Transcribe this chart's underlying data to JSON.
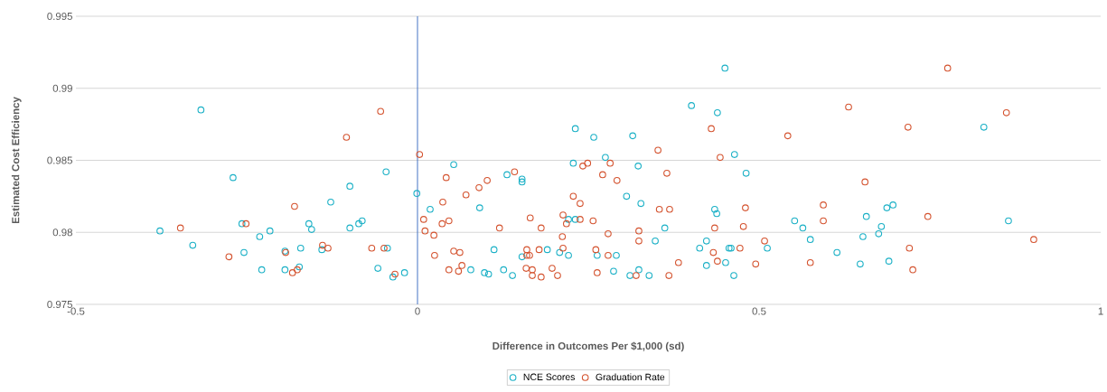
{
  "chart_data": {
    "type": "scatter",
    "xlabel": "Difference in Outcomes Per $1,000 (sd)",
    "ylabel": "Estimated Cost Efficiency",
    "xlim": [
      -0.5,
      1
    ],
    "ylim": [
      0.975,
      0.995
    ],
    "xticks": [
      -0.5,
      0,
      0.5,
      1
    ],
    "yticks": [
      0.975,
      0.98,
      0.985,
      0.99,
      0.995
    ],
    "grid": "y",
    "legend": "bottom",
    "marker": "circle",
    "ref_lines": [
      {
        "axis": "x",
        "value": 0,
        "color": "#4472c4"
      }
    ],
    "series": [
      {
        "name": "NCE Scores",
        "color": "#1ab0c6",
        "x": [
          -0.377,
          -0.329,
          -0.317,
          -0.27,
          -0.257,
          -0.254,
          -0.231,
          -0.228,
          -0.216,
          -0.194,
          -0.194,
          -0.173,
          -0.171,
          -0.159,
          -0.155,
          -0.14,
          -0.127,
          -0.099,
          -0.099,
          -0.086,
          -0.081,
          -0.058,
          -0.046,
          -0.044,
          -0.036,
          -0.019,
          -0.001,
          0.0185,
          0.053,
          0.091,
          0.112,
          0.078,
          0.098,
          0.104,
          0.126,
          0.139,
          0.131,
          0.153,
          0.153,
          0.153,
          0.19,
          0.208,
          0.221,
          0.221,
          0.231,
          0.228,
          0.263,
          0.291,
          0.287,
          0.306,
          0.323,
          0.327,
          0.324,
          0.311,
          0.339,
          0.348,
          0.362,
          0.481,
          0.435,
          0.438,
          0.413,
          0.423,
          0.423,
          0.451,
          0.456,
          0.459,
          0.463,
          0.512,
          0.382,
          0.231,
          0.258,
          0.315,
          0.275,
          0.401,
          0.439,
          0.45,
          0.464,
          0.829,
          0.552,
          0.564,
          0.575,
          0.614,
          0.648,
          0.652,
          0.657,
          0.675,
          0.679,
          0.687,
          0.696,
          0.69,
          0.865
        ],
        "values": [
          0.9801,
          0.9791,
          0.9885,
          0.9838,
          0.9806,
          0.9786,
          0.9797,
          0.9774,
          0.9801,
          0.9787,
          0.9774,
          0.9776,
          0.9789,
          0.9806,
          0.9802,
          0.9788,
          0.9821,
          0.9832,
          0.9803,
          0.9806,
          0.9808,
          0.9775,
          0.9842,
          0.9789,
          0.9769,
          0.9772,
          0.9827,
          0.9816,
          0.9847,
          0.9817,
          0.9788,
          0.9774,
          0.9772,
          0.9771,
          0.9774,
          0.977,
          0.984,
          0.9837,
          0.9835,
          0.9783,
          0.9788,
          0.9786,
          0.9784,
          0.9809,
          0.9809,
          0.9848,
          0.9784,
          0.9784,
          0.9773,
          0.9825,
          0.9846,
          0.982,
          0.9774,
          0.977,
          0.977,
          0.9794,
          0.9803,
          0.9841,
          0.9816,
          0.9813,
          0.9789,
          0.9794,
          0.9777,
          0.9779,
          0.9789,
          0.9789,
          0.977,
          0.9789,
          null,
          0.9872,
          0.9866,
          0.9867,
          0.9852,
          0.9888,
          0.9883,
          0.9914,
          0.9854,
          0.9873,
          0.9808,
          0.9803,
          0.9795,
          0.9786,
          0.9778,
          0.9797,
          0.9811,
          0.9799,
          0.9804,
          0.9817,
          0.9819,
          0.978,
          0.9808
        ]
      },
      {
        "name": "Graduation Rate",
        "color": "#d4532f",
        "x": [
          -0.054,
          -0.104,
          0.003,
          -0.347,
          -0.276,
          -0.251,
          -0.18,
          -0.193,
          -0.183,
          -0.176,
          -0.139,
          -0.131,
          -0.067,
          -0.049,
          -0.033,
          0.009,
          0.011,
          0.024,
          0.025,
          0.037,
          0.036,
          0.042,
          0.046,
          0.046,
          0.053,
          0.06,
          0.062,
          0.065,
          0.071,
          0.09,
          0.102,
          0.12,
          0.142,
          0.165,
          0.16,
          0.16,
          0.164,
          0.159,
          0.168,
          0.168,
          0.178,
          0.181,
          0.181,
          0.197,
          0.205,
          0.212,
          0.213,
          0.213,
          0.218,
          0.228,
          0.238,
          0.238,
          0.242,
          0.249,
          0.257,
          0.261,
          0.263,
          0.271,
          0.279,
          0.279,
          0.282,
          0.292,
          0.32,
          0.324,
          0.324,
          0.365,
          0.354,
          0.369,
          0.368,
          0.382,
          0.433,
          0.435,
          0.439,
          0.472,
          0.477,
          0.48,
          0.495,
          0.508,
          0.352,
          0.43,
          0.443,
          0.542,
          0.631,
          0.718,
          0.776,
          0.862,
          0.594,
          0.594,
          0.575,
          0.655,
          0.747,
          0.72,
          0.725,
          0.902
        ],
        "values": [
          0.9884,
          0.9866,
          0.9854,
          0.9803,
          0.9783,
          0.9806,
          0.9818,
          0.9786,
          0.9772,
          0.9774,
          0.9791,
          0.9789,
          0.9789,
          0.9789,
          0.9771,
          0.9809,
          0.9801,
          0.9798,
          0.9784,
          0.9821,
          0.9806,
          0.9838,
          0.9808,
          0.9774,
          0.9787,
          0.9773,
          0.9786,
          0.9777,
          0.9826,
          0.9831,
          0.9836,
          0.9803,
          0.9842,
          0.981,
          0.9788,
          0.9784,
          0.9784,
          0.9775,
          0.9774,
          0.977,
          0.9788,
          0.9803,
          0.9769,
          0.9775,
          0.977,
          0.9797,
          0.9789,
          0.9812,
          0.9806,
          0.9825,
          0.982,
          0.9809,
          0.9846,
          0.9848,
          0.9808,
          0.9788,
          0.9772,
          0.984,
          0.9784,
          0.9799,
          0.9848,
          0.9836,
          0.977,
          0.9801,
          0.9794,
          0.9841,
          0.9816,
          0.9816,
          0.977,
          0.9779,
          0.9786,
          0.9803,
          0.978,
          0.9789,
          0.9804,
          0.9817,
          0.9778,
          0.9794,
          0.9857,
          0.9872,
          0.9852,
          0.9867,
          0.9887,
          0.9873,
          0.9914,
          0.9883,
          0.9819,
          0.9808,
          0.9779,
          0.9835,
          0.9811,
          0.9789,
          0.9774,
          0.9795
        ]
      }
    ]
  }
}
